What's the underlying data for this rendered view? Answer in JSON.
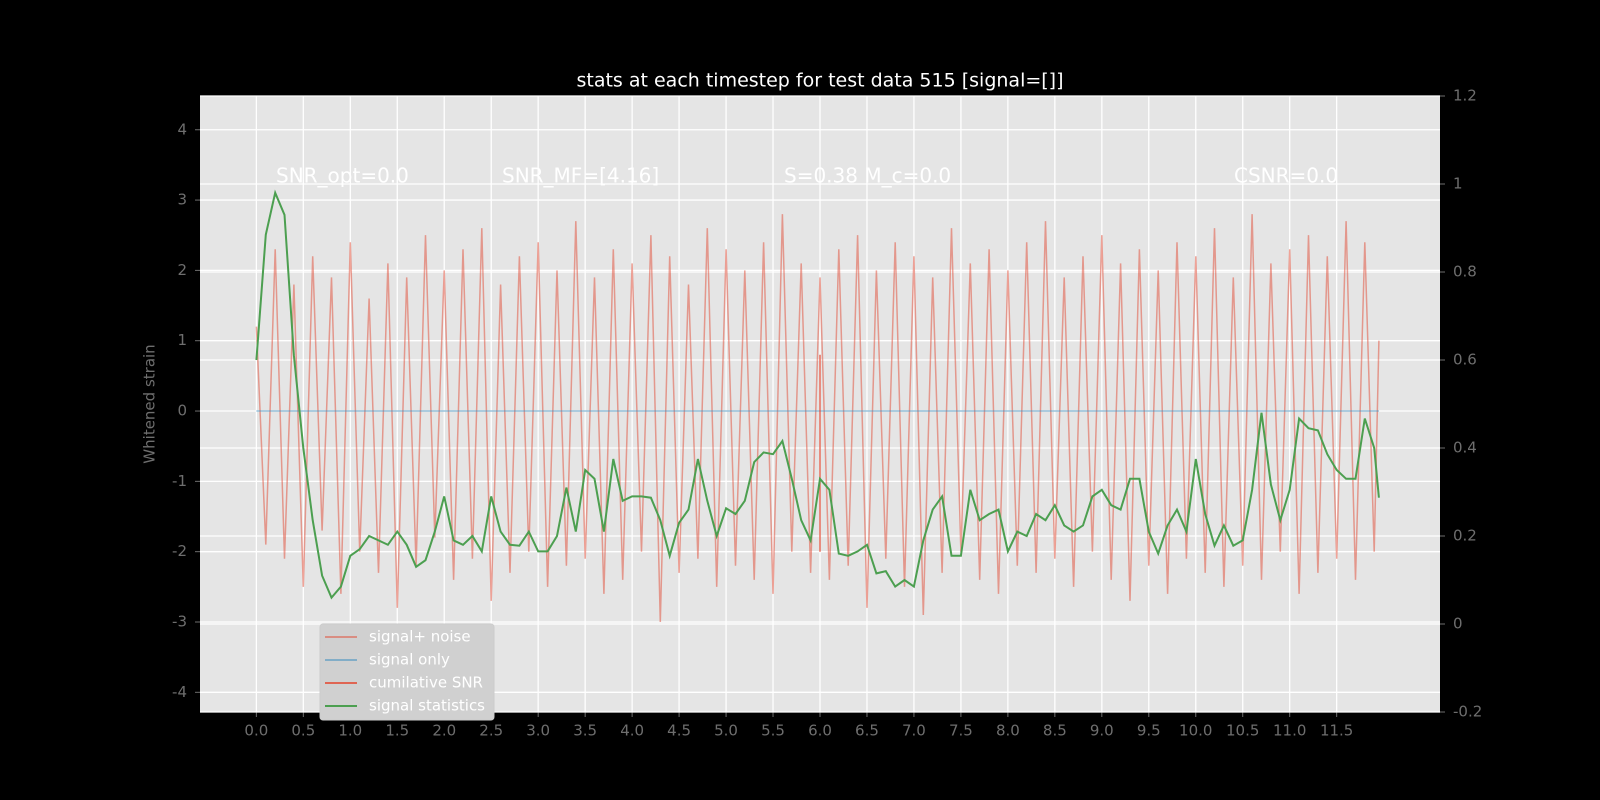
{
  "chart_data": {
    "type": "line",
    "title": "stats at each timestep for test data 515 [signal=[]]",
    "ylabel": "Whitened strain",
    "annotations": [
      "SNR_opt=0.0",
      "SNR_MF=[4.16]",
      "S=0.38   M_c=0.0",
      "CSNR=0.0"
    ],
    "x": [
      0,
      0.1,
      0.2,
      0.3,
      0.4,
      0.5,
      0.6,
      0.7,
      0.8,
      0.9,
      1.0,
      1.1,
      1.2,
      1.3,
      1.4,
      1.5,
      1.6,
      1.7,
      1.8,
      1.9,
      2.0,
      2.1,
      2.2,
      2.3,
      2.4,
      2.5,
      2.6,
      2.7,
      2.8,
      2.9,
      3.0,
      3.1,
      3.2,
      3.3,
      3.4,
      3.5,
      3.6,
      3.7,
      3.8,
      3.9,
      4.0,
      4.1,
      4.2,
      4.3,
      4.4,
      4.5,
      4.6,
      4.7,
      4.8,
      4.9,
      5.0,
      5.1,
      5.2,
      5.3,
      5.4,
      5.5,
      5.6,
      5.7,
      5.8,
      5.9,
      6.0,
      6.1,
      6.2,
      6.3,
      6.4,
      6.5,
      6.6,
      6.7,
      6.8,
      6.9,
      7.0,
      7.1,
      7.2,
      7.3,
      7.4,
      7.5,
      7.6,
      7.7,
      7.8,
      7.9,
      8.0,
      8.1,
      8.2,
      8.3,
      8.4,
      8.5,
      8.6,
      8.7,
      8.8,
      8.9,
      9.0,
      9.1,
      9.2,
      9.3,
      9.4,
      9.5,
      9.6,
      9.7,
      9.8,
      9.9,
      10.0,
      10.1,
      10.2,
      10.3,
      10.4,
      10.5,
      10.6,
      10.7,
      10.8,
      10.9,
      11.0,
      11.1,
      11.2,
      11.3,
      11.4,
      11.5,
      11.6,
      11.7,
      11.8,
      11.9,
      11.95
    ],
    "series": [
      {
        "name": "signal+ noise",
        "color": "#e24a33",
        "opacity": 0.5,
        "values": [
          1.2,
          -1.9,
          2.3,
          -2.1,
          1.8,
          -2.5,
          2.2,
          -1.7,
          1.9,
          -2.6,
          2.4,
          -2.0,
          1.6,
          -2.3,
          2.1,
          -2.8,
          1.9,
          -2.2,
          2.5,
          -1.8,
          2.0,
          -2.4,
          2.3,
          -2.1,
          2.6,
          -2.7,
          1.8,
          -2.3,
          2.2,
          -2.0,
          2.4,
          -2.5,
          2.0,
          -2.2,
          2.7,
          -2.1,
          1.9,
          -2.6,
          2.3,
          -2.4,
          2.1,
          -2.0,
          2.5,
          -3.0,
          2.2,
          -2.3,
          1.8,
          -2.1,
          2.6,
          -2.5,
          2.3,
          -2.2,
          2.0,
          -2.4,
          2.4,
          -2.6,
          2.8,
          -2.0,
          2.1,
          -2.3,
          1.9,
          -2.4,
          2.3,
          -2.2,
          2.5,
          -2.8,
          2.0,
          -2.1,
          2.4,
          -2.5,
          2.2,
          -2.9,
          1.9,
          -2.3,
          2.6,
          -2.0,
          2.1,
          -2.4,
          2.3,
          -2.6,
          2.0,
          -2.2,
          2.4,
          -2.3,
          2.7,
          -2.1,
          1.9,
          -2.5,
          2.2,
          -2.0,
          2.5,
          -2.4,
          2.1,
          -2.7,
          2.3,
          -2.2,
          2.0,
          -2.6,
          2.4,
          -2.1,
          2.2,
          -2.3,
          2.6,
          -2.5,
          1.9,
          -2.2,
          2.8,
          -2.4,
          2.1,
          -2.0,
          2.3,
          -2.6,
          2.5,
          -2.3,
          2.2,
          -2.1,
          2.7,
          -2.4,
          2.4,
          -2.0,
          1.0
        ]
      },
      {
        "name": "signal only",
        "color": "#348abd",
        "opacity": 0.5,
        "x": [
          0,
          11.95
        ],
        "values": [
          0,
          0
        ]
      },
      {
        "name": "cumilative SNR",
        "color": "#e24a33",
        "opacity": 0.8,
        "x": [
          6.0,
          6.0
        ],
        "values": [
          0.8,
          -2.0
        ]
      },
      {
        "name": "signal statistics",
        "color": "#4c9f50",
        "opacity": 1,
        "axis": "y2",
        "values": [
          0.6,
          0.885,
          0.98,
          0.93,
          0.61,
          0.4,
          0.236,
          0.11,
          0.06,
          0.085,
          0.155,
          0.17,
          0.2,
          0.19,
          0.18,
          0.21,
          0.18,
          0.13,
          0.145,
          0.21,
          0.29,
          0.19,
          0.18,
          0.2,
          0.165,
          0.29,
          0.21,
          0.18,
          0.178,
          0.21,
          0.165,
          0.165,
          0.2,
          0.31,
          0.21,
          0.35,
          0.33,
          0.21,
          0.375,
          0.28,
          0.29,
          0.29,
          0.287,
          0.236,
          0.155,
          0.23,
          0.26,
          0.375,
          0.28,
          0.2,
          0.263,
          0.25,
          0.28,
          0.368,
          0.39,
          0.386,
          0.416,
          0.33,
          0.236,
          0.19,
          0.33,
          0.305,
          0.16,
          0.155,
          0.165,
          0.18,
          0.115,
          0.12,
          0.085,
          0.1,
          0.085,
          0.19,
          0.26,
          0.29,
          0.155,
          0.155,
          0.305,
          0.236,
          0.25,
          0.26,
          0.165,
          0.21,
          0.2,
          0.25,
          0.236,
          0.27,
          0.224,
          0.21,
          0.224,
          0.29,
          0.305,
          0.27,
          0.26,
          0.33,
          0.33,
          0.21,
          0.16,
          0.224,
          0.26,
          0.21,
          0.375,
          0.25,
          0.178,
          0.224,
          0.178,
          0.19,
          0.305,
          0.48,
          0.317,
          0.236,
          0.305,
          0.467,
          0.445,
          0.44,
          0.386,
          0.35,
          0.33,
          0.33,
          0.467,
          0.4,
          0.287
        ]
      }
    ],
    "xlim": [
      -0.6,
      12.6
    ],
    "xticks": [
      {
        "value": 0,
        "label": "0.0"
      },
      {
        "value": 0.5,
        "label": "0.5"
      },
      {
        "value": 1,
        "label": "1.0"
      },
      {
        "value": 1.5,
        "label": "1.5"
      },
      {
        "value": 2,
        "label": "2.0"
      },
      {
        "value": 2.5,
        "label": "2.5"
      },
      {
        "value": 3,
        "label": "3.0"
      },
      {
        "value": 3.5,
        "label": "3.5"
      },
      {
        "value": 4,
        "label": "4.0"
      },
      {
        "value": 4.5,
        "label": "4.5"
      },
      {
        "value": 5,
        "label": "5.0"
      },
      {
        "value": 5.5,
        "label": "5.5"
      },
      {
        "value": 6,
        "label": "6.0"
      },
      {
        "value": 6.5,
        "label": "6.5"
      },
      {
        "value": 7,
        "label": "7.0"
      },
      {
        "value": 7.5,
        "label": "7.5"
      },
      {
        "value": 8,
        "label": "8.0"
      },
      {
        "value": 8.5,
        "label": "8.5"
      },
      {
        "value": 9,
        "label": "9.0"
      },
      {
        "value": 9.5,
        "label": "9.5"
      },
      {
        "value": 10,
        "label": "10.0"
      },
      {
        "value": 10.5,
        "label": "10.5"
      },
      {
        "value": 11,
        "label": "11.0"
      },
      {
        "value": 11.5,
        "label": "11.5"
      }
    ],
    "ylim": [
      -4.28,
      4.48
    ],
    "yticks": [
      -4,
      -3,
      -2,
      -1,
      0,
      1,
      2,
      3,
      4
    ],
    "y2lim": [
      -0.2,
      1.2
    ],
    "y2ticks": [
      -0.2,
      0.0,
      0.2,
      0.4,
      0.6,
      0.8,
      1.0,
      1.2
    ],
    "grid": true,
    "legend": "lower left"
  }
}
